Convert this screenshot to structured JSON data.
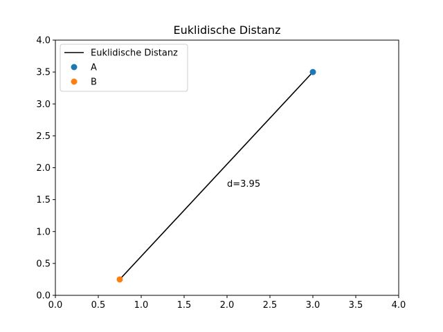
{
  "chart_data": {
    "type": "line",
    "title": "Euklidische Distanz",
    "xlabel": "",
    "ylabel": "",
    "xlim": [
      0.0,
      4.0
    ],
    "ylim": [
      0.0,
      4.0
    ],
    "xticks": [
      "0.0",
      "0.5",
      "1.0",
      "1.5",
      "2.0",
      "2.5",
      "3.0",
      "3.5",
      "4.0"
    ],
    "yticks": [
      "0.0",
      "0.5",
      "1.0",
      "1.5",
      "2.0",
      "2.5",
      "3.0",
      "3.5",
      "4.0"
    ],
    "grid": false,
    "legend_position": "top-left",
    "series": [
      {
        "name": "Euklidische Distanz",
        "kind": "line",
        "color": "#000000",
        "x": [
          0.75,
          3.0
        ],
        "y": [
          0.25,
          3.5
        ]
      },
      {
        "name": "A",
        "kind": "scatter",
        "color": "#1f77b4",
        "x": [
          3.0
        ],
        "y": [
          3.5
        ]
      },
      {
        "name": "B",
        "kind": "scatter",
        "color": "#ff7f0e",
        "x": [
          0.75
        ],
        "y": [
          0.25
        ]
      }
    ],
    "annotations": [
      {
        "text": "d=3.95",
        "x": 2.0,
        "y": 1.75
      }
    ]
  }
}
